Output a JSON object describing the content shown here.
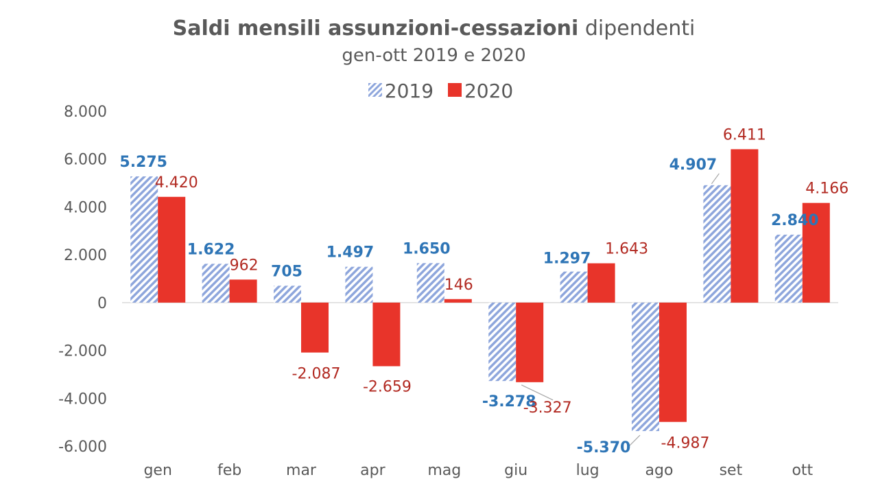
{
  "title": {
    "bold": "Saldi mensili assunzioni-cessazioni",
    "rest": "dipendenti",
    "subtitle": "gen-ott 2019 e 2020"
  },
  "colors": {
    "s2019_stripe": "#8EA6DC",
    "s2019_label": "#2E75B6",
    "s2020_fill": "#E8342A",
    "s2020_label": "#B22A22",
    "axis_text": "#595959",
    "axis_line": "#D9D9D9"
  },
  "chart_data": {
    "type": "bar",
    "categories": [
      "gen",
      "feb",
      "mar",
      "apr",
      "mag",
      "giu",
      "lug",
      "ago",
      "set",
      "ott"
    ],
    "series": [
      {
        "name": "2019",
        "values": [
          5275,
          1622,
          705,
          1497,
          1650,
          -3278,
          1297,
          -5370,
          4907,
          2840
        ],
        "labels": [
          "5.275",
          "1.622",
          "705",
          "1.497",
          "1.650",
          "-3.278",
          "1.297",
          "-5.370",
          "4.907",
          "2.840"
        ]
      },
      {
        "name": "2020",
        "values": [
          4420,
          962,
          -2087,
          -2659,
          146,
          -3327,
          1643,
          -4987,
          6411,
          4166
        ],
        "labels": [
          "4.420",
          "962",
          "-2.087",
          "-2.659",
          "146",
          "-3.327",
          "1.643",
          "-4.987",
          "6.411",
          "4.166"
        ]
      }
    ],
    "yticks": [
      "8.000",
      "6.000",
      "4.000",
      "2.000",
      "0",
      "-2.000",
      "-4.000",
      "-6.000"
    ],
    "ytick_values": [
      8000,
      6000,
      4000,
      2000,
      0,
      -2000,
      -4000,
      -6000
    ],
    "ylim": [
      -6000,
      8000
    ],
    "grid": false,
    "legend_position": "top"
  }
}
